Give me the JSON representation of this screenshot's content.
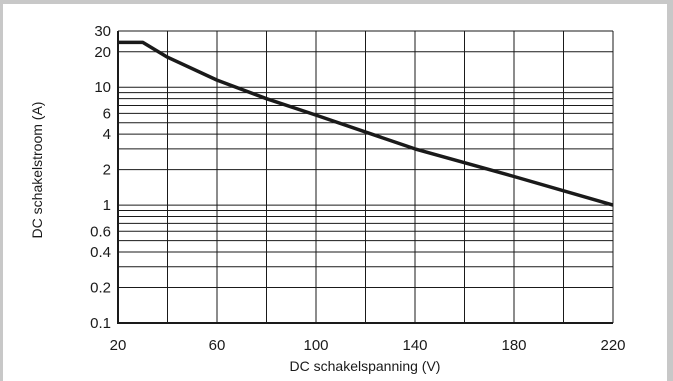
{
  "chart_data": {
    "type": "line",
    "xlabel": "DC schakelspanning (V)",
    "ylabel": "DC schakelstroom (A)",
    "xlim": [
      20,
      220
    ],
    "ylim": [
      0.1,
      30
    ],
    "yscale": "log",
    "grid": true,
    "x_ticks": [
      20,
      60,
      100,
      140,
      180,
      220
    ],
    "x_tick_labels": [
      "20",
      "60",
      "100",
      "140",
      "180",
      "220"
    ],
    "x_gridlines": [
      20,
      40,
      60,
      80,
      100,
      120,
      140,
      160,
      180,
      200,
      220
    ],
    "y_ticks": [
      0.1,
      0.2,
      0.4,
      0.6,
      1,
      2,
      4,
      6,
      10,
      20,
      30
    ],
    "y_tick_labels": [
      "0.1",
      "0.2",
      "0.4",
      "0.6",
      "1",
      "2",
      "4",
      "6",
      "10",
      "20",
      "30"
    ],
    "y_gridlines": [
      0.1,
      0.2,
      0.3,
      0.4,
      0.5,
      0.6,
      0.7,
      0.8,
      0.9,
      1,
      2,
      3,
      4,
      5,
      6,
      7,
      8,
      9,
      10,
      20,
      30
    ],
    "series": [
      {
        "x": [
          20,
          30,
          40,
          60,
          80,
          100,
          140,
          180,
          220
        ],
        "y": [
          24,
          24,
          18,
          11.5,
          8,
          5.8,
          3.0,
          1.75,
          1.0
        ]
      }
    ],
    "colors": {
      "line": "#1a1a1a",
      "grid": "#1a1a1a",
      "frame": "#c8c8c8"
    }
  }
}
